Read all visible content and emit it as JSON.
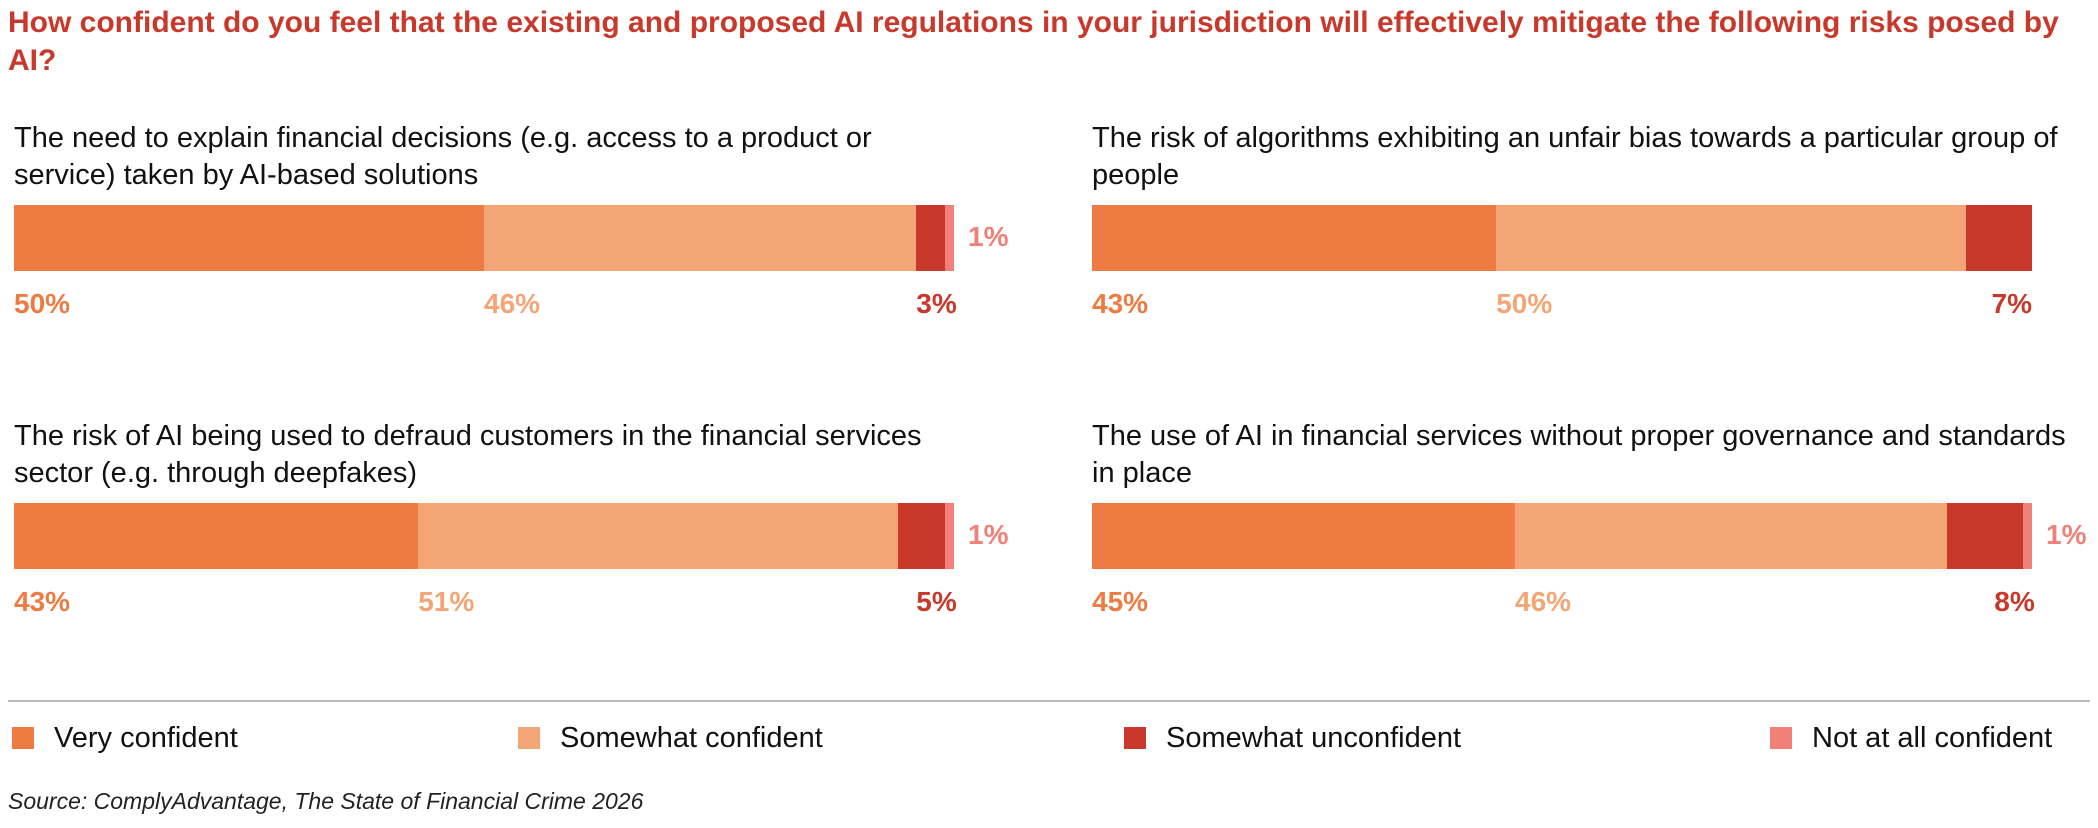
{
  "title": "How confident do you feel that the existing and proposed AI regulations in your jurisdiction will effectively mitigate the following risks posed by AI?",
  "source": "Source: ComplyAdvantage, The State of Financial Crime 2026",
  "colors": {
    "very_confident": "#ee7c42",
    "somewhat_confident": "#f3a575",
    "somewhat_unconfident": "#c8392b",
    "not_at_all_confident": "#f08078"
  },
  "legend": [
    {
      "label": "Very confident",
      "color": "#ee7c42"
    },
    {
      "label": "Somewhat confident",
      "color": "#f3a575"
    },
    {
      "label": "Somewhat unconfident",
      "color": "#c8392b"
    },
    {
      "label": "Not at all confident",
      "color": "#f08078"
    }
  ],
  "chart_data": [
    {
      "type": "bar",
      "stacked": true,
      "orientation": "horizontal",
      "title": "The need to explain financial decisions (e.g. access to a product or service) taken by AI-based solutions",
      "series": [
        {
          "name": "Very confident",
          "value": 50,
          "label": "50%"
        },
        {
          "name": "Somewhat confident",
          "value": 46,
          "label": "46%"
        },
        {
          "name": "Somewhat unconfident",
          "value": 3,
          "label": "3%"
        },
        {
          "name": "Not at all confident",
          "value": 1,
          "label": "1%"
        }
      ]
    },
    {
      "type": "bar",
      "stacked": true,
      "orientation": "horizontal",
      "title": "The risk of algorithms exhibiting an unfair bias towards a particular group of people",
      "series": [
        {
          "name": "Very confident",
          "value": 43,
          "label": "43%"
        },
        {
          "name": "Somewhat confident",
          "value": 50,
          "label": "50%"
        },
        {
          "name": "Somewhat unconfident",
          "value": 7,
          "label": "7%"
        }
      ]
    },
    {
      "type": "bar",
      "stacked": true,
      "orientation": "horizontal",
      "title": "The risk of AI being used to defraud customers in the financial services sector (e.g. through deepfakes)",
      "series": [
        {
          "name": "Very confident",
          "value": 43,
          "label": "43%"
        },
        {
          "name": "Somewhat confident",
          "value": 51,
          "label": "51%"
        },
        {
          "name": "Somewhat unconfident",
          "value": 5,
          "label": "5%"
        },
        {
          "name": "Not at all confident",
          "value": 1,
          "label": "1%"
        }
      ]
    },
    {
      "type": "bar",
      "stacked": true,
      "orientation": "horizontal",
      "title": "The use of AI in financial services without proper governance and standards in place",
      "series": [
        {
          "name": "Very confident",
          "value": 45,
          "label": "45%"
        },
        {
          "name": "Somewhat confident",
          "value": 46,
          "label": "46%"
        },
        {
          "name": "Somewhat unconfident",
          "value": 8,
          "label": "8%"
        },
        {
          "name": "Not at all confident",
          "value": 1,
          "label": "1%"
        }
      ]
    }
  ]
}
